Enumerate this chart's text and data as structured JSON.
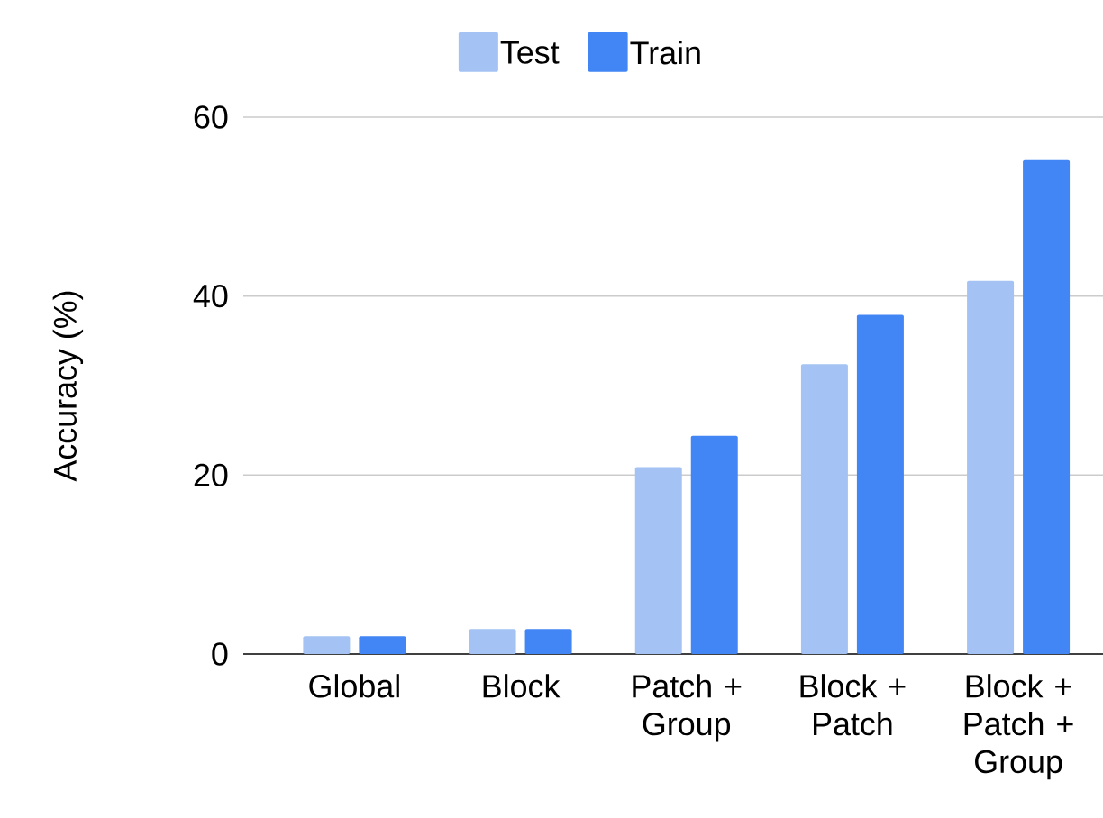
{
  "chart_data": {
    "type": "bar",
    "ylabel": "Accuracy (%)",
    "categories": [
      "Global",
      "Block",
      "Patch + Group",
      "Block + Patch",
      "Block + Patch + Group"
    ],
    "series": [
      {
        "name": "Test",
        "color": "#a4c2f4",
        "values": [
          2.0,
          2.8,
          20.9,
          32.4,
          41.7
        ]
      },
      {
        "name": "Train",
        "color": "#4285f4",
        "values": [
          2.0,
          2.8,
          24.4,
          37.9,
          55.2
        ]
      }
    ],
    "ylim": [
      0,
      60
    ],
    "yticks": [
      0,
      20,
      40,
      60
    ],
    "grid": "y",
    "legend": "top"
  }
}
